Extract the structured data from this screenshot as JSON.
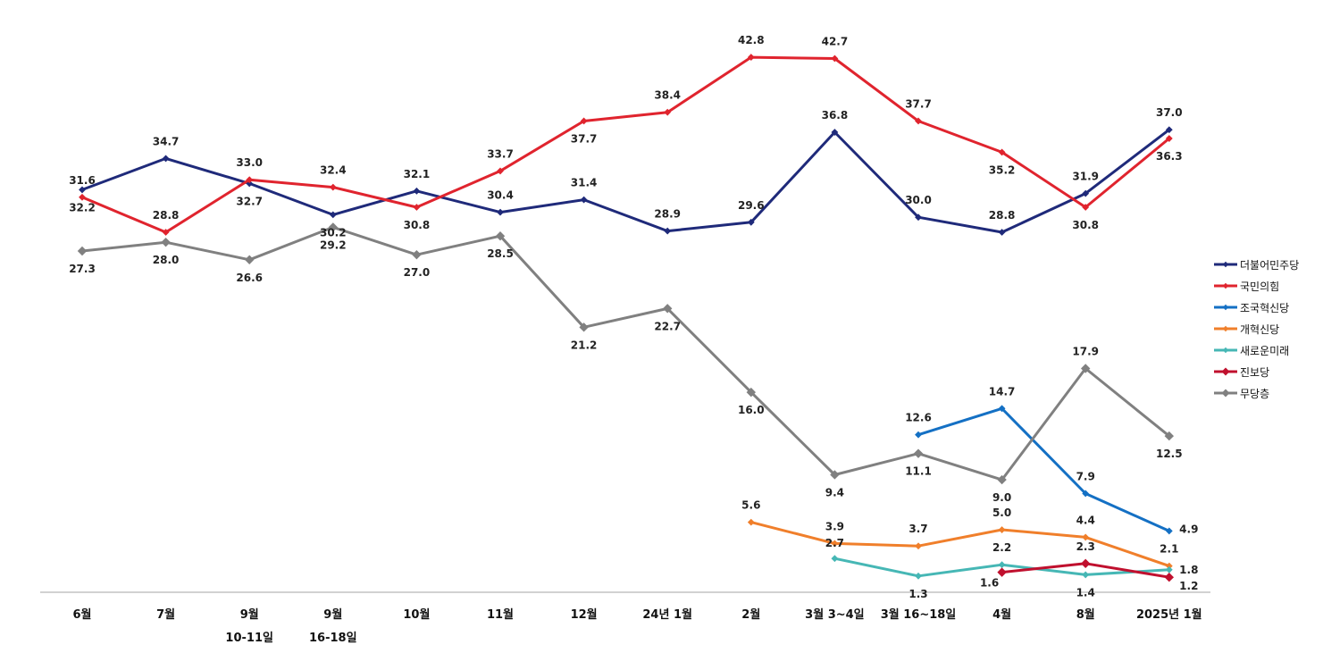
{
  "chart_data": {
    "type": "line",
    "categories": [
      {
        "line1": "6월",
        "line2": ""
      },
      {
        "line1": "7월",
        "line2": ""
      },
      {
        "line1": "9월",
        "line2": "10-11일"
      },
      {
        "line1": "9월",
        "line2": "16-18일"
      },
      {
        "line1": "10월",
        "line2": ""
      },
      {
        "line1": "11월",
        "line2": ""
      },
      {
        "line1": "12월",
        "line2": ""
      },
      {
        "line1": "24년 1월",
        "line2": ""
      },
      {
        "line1": "2월",
        "line2": ""
      },
      {
        "line1": "3월 3~4일",
        "line2": ""
      },
      {
        "line1": "3월 16~18일",
        "line2": ""
      },
      {
        "line1": "4월",
        "line2": ""
      },
      {
        "line1": "8월",
        "line2": ""
      },
      {
        "line1": "2025년 1월",
        "line2": ""
      }
    ],
    "ylim": [
      0,
      45
    ],
    "grid": false,
    "legend_position": "right",
    "series": [
      {
        "name": "더불어민주당",
        "color": "#1F2A7A",
        "marker": "diamond-small",
        "values": [
          32.2,
          34.7,
          32.7,
          30.2,
          32.1,
          30.4,
          31.4,
          28.9,
          29.6,
          36.8,
          30.0,
          28.8,
          31.9,
          37.0
        ],
        "labels": [
          "32.2",
          "34.7",
          "32.7",
          "30.2",
          "32.1",
          "30.4",
          "31.4",
          "28.9",
          "29.6",
          "36.8",
          "30.0",
          "28.8",
          "31.9",
          "37.0"
        ]
      },
      {
        "name": "국민의힘",
        "color": "#E0242E",
        "marker": "diamond-small",
        "values": [
          31.6,
          28.8,
          33.0,
          32.4,
          30.8,
          33.7,
          37.7,
          38.4,
          42.8,
          42.7,
          37.7,
          35.2,
          30.8,
          36.3
        ],
        "labels": [
          "31.6",
          "28.8",
          "33.0",
          "32.4",
          "30.8",
          "33.7",
          "37.7",
          "38.4",
          "42.8",
          "42.7",
          "37.7",
          "35.2",
          "30.8",
          "36.3"
        ]
      },
      {
        "name": "조국혁신당",
        "color": "#1470C4",
        "marker": "diamond-small",
        "values": [
          null,
          null,
          null,
          null,
          null,
          null,
          null,
          null,
          null,
          null,
          12.6,
          14.7,
          7.9,
          4.9
        ],
        "labels": [
          "",
          "",
          "",
          "",
          "",
          "",
          "",
          "",
          "",
          "",
          "12.6",
          "14.7",
          "7.9",
          "4.9"
        ]
      },
      {
        "name": "개혁신당",
        "color": "#F07F2B",
        "marker": "diamond-small",
        "values": [
          null,
          null,
          null,
          null,
          null,
          null,
          null,
          null,
          5.6,
          3.9,
          3.7,
          5.0,
          4.4,
          2.1
        ],
        "labels": [
          "",
          "",
          "",
          "",
          "",
          "",
          "",
          "",
          "5.6",
          "3.9",
          "3.7",
          "5.0",
          "4.4",
          "2.1"
        ]
      },
      {
        "name": "새로운미래",
        "color": "#46B7B5",
        "marker": "diamond-small",
        "values": [
          null,
          null,
          null,
          null,
          null,
          null,
          null,
          null,
          null,
          2.7,
          1.3,
          2.2,
          1.4,
          1.8
        ],
        "labels": [
          "",
          "",
          "",
          "",
          "",
          "",
          "",
          "",
          "",
          "2.7",
          "1.3",
          "2.2",
          "1.4",
          "1.8"
        ]
      },
      {
        "name": "진보당",
        "color": "#C0102E",
        "marker": "diamond",
        "values": [
          null,
          null,
          null,
          null,
          null,
          null,
          null,
          null,
          null,
          null,
          null,
          1.6,
          2.3,
          1.2
        ],
        "labels": [
          "",
          "",
          "",
          "",
          "",
          "",
          "",
          "",
          "",
          "",
          "",
          "1.6",
          "2.3",
          "1.2"
        ]
      },
      {
        "name": "무당층",
        "color": "#808080",
        "marker": "diamond",
        "values": [
          27.3,
          28.0,
          26.6,
          29.2,
          27.0,
          28.5,
          21.2,
          22.7,
          16.0,
          9.4,
          11.1,
          9.0,
          17.9,
          12.5
        ],
        "labels": [
          "27.3",
          "28.0",
          "26.6",
          "29.2",
          "27.0",
          "28.5",
          "21.2",
          "22.7",
          "16.0",
          "9.4",
          "11.1",
          "9.0",
          "17.9",
          "12.5"
        ]
      }
    ]
  }
}
